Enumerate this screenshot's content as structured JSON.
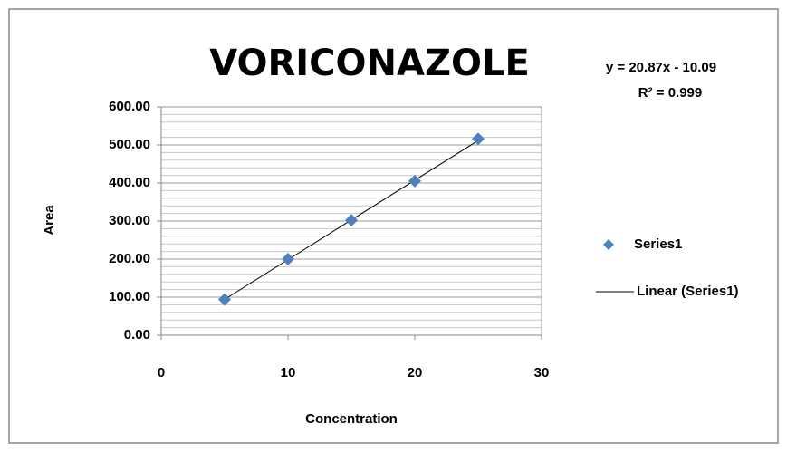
{
  "chart_data": {
    "type": "scatter",
    "title": "VORICONAZOLE",
    "x_label": "Concentration",
    "y_label": "Area",
    "x": [
      5,
      10,
      15,
      20,
      25
    ],
    "series": [
      {
        "name": "Series1",
        "color": "#4f81bd",
        "values": [
          94,
          200,
          302,
          405,
          516
        ]
      }
    ],
    "trendline": {
      "name": "Linear (Series1)",
      "color": "#000000",
      "slope": 20.87,
      "intercept": -10.09
    },
    "equation": "y = 20.87x - 10.09",
    "r_squared": "R² = 0.999",
    "xlim": [
      0,
      30
    ],
    "xticks": [
      0,
      10,
      20,
      30
    ],
    "ylim": [
      0,
      600
    ],
    "yticks": [
      {
        "value": 0,
        "label": "0.00"
      },
      {
        "value": 100,
        "label": "100.00"
      },
      {
        "value": 200,
        "label": "200.00"
      },
      {
        "value": 300,
        "label": "300.00"
      },
      {
        "value": 400,
        "label": "400.00"
      },
      {
        "value": 500,
        "label": "500.00"
      },
      {
        "value": 600,
        "label": "600.00"
      }
    ],
    "grid": true,
    "minor_grid": 20,
    "legend": "right"
  }
}
